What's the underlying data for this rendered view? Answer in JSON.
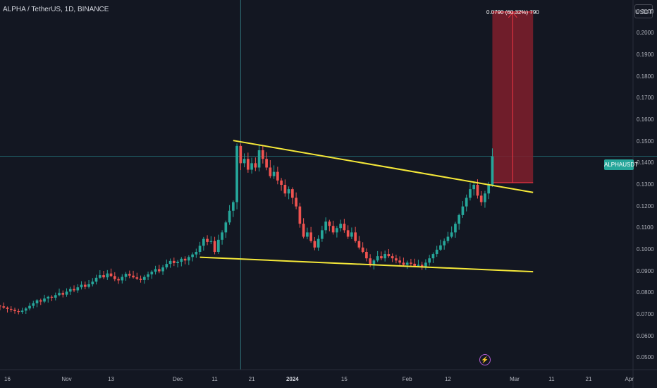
{
  "header": {
    "title": "ALPHA / TetherUS, 1D, BINANCE"
  },
  "price_scale": {
    "unit_label": "USDT"
  },
  "ticker_badge": "ALPHAUSDT",
  "measure_label": "0.0790 (60.32%) 790",
  "colors": {
    "background": "#131722",
    "up": "#26a69a",
    "down": "#ef5350",
    "trendline": "#f5e839",
    "measure_fill": "#801f2c",
    "measure_line": "#f23645"
  },
  "chart_data": {
    "type": "candlestick",
    "title": "ALPHA / TetherUS, 1D, BINANCE",
    "y_axis": {
      "ticks": [
        "0.2100",
        "0.2000",
        "0.1900",
        "0.1800",
        "0.1700",
        "0.1600",
        "0.1500",
        "0.1400",
        "0.1300",
        "0.1200",
        "0.1100",
        "0.1000",
        "0.0900",
        "0.0800",
        "0.0700",
        "0.0600",
        "0.0500"
      ],
      "ylim": [
        0.0445,
        0.2155
      ],
      "position": "right"
    },
    "x_axis": {
      "ticks": [
        "16",
        "Nov",
        "13",
        "Dec",
        "11",
        "21",
        "2024",
        "15",
        "Feb",
        "12",
        "Mar",
        "11",
        "21",
        "Apr"
      ],
      "bold_ticks": [
        "2024"
      ]
    },
    "x_date_range": [
      "2023-10-14",
      "2024-04-02"
    ],
    "current_price": 0.1432,
    "crosshair_date": "2023-12-18",
    "closes": [
      [
        "2023-10-14",
        0.0738
      ],
      [
        "2023-10-15",
        0.0732
      ],
      [
        "2023-10-16",
        0.0726
      ],
      [
        "2023-10-17",
        0.0722
      ],
      [
        "2023-10-18",
        0.0716
      ],
      [
        "2023-10-19",
        0.0712
      ],
      [
        "2023-10-20",
        0.0718
      ],
      [
        "2023-10-21",
        0.0728
      ],
      [
        "2023-10-22",
        0.074
      ],
      [
        "2023-10-23",
        0.0752
      ],
      [
        "2023-10-24",
        0.0766
      ],
      [
        "2023-10-25",
        0.076
      ],
      [
        "2023-10-26",
        0.0774
      ],
      [
        "2023-10-27",
        0.0782
      ],
      [
        "2023-10-28",
        0.0778
      ],
      [
        "2023-10-29",
        0.079
      ],
      [
        "2023-10-30",
        0.08
      ],
      [
        "2023-10-31",
        0.0792
      ],
      [
        "2023-11-01",
        0.0806
      ],
      [
        "2023-11-02",
        0.0818
      ],
      [
        "2023-11-03",
        0.0812
      ],
      [
        "2023-11-04",
        0.0826
      ],
      [
        "2023-11-05",
        0.0838
      ],
      [
        "2023-11-06",
        0.0828
      ],
      [
        "2023-11-07",
        0.084
      ],
      [
        "2023-11-08",
        0.0852
      ],
      [
        "2023-11-09",
        0.087
      ],
      [
        "2023-11-10",
        0.0882
      ],
      [
        "2023-11-11",
        0.0872
      ],
      [
        "2023-11-12",
        0.089
      ],
      [
        "2023-11-13",
        0.0878
      ],
      [
        "2023-11-14",
        0.0864
      ],
      [
        "2023-11-15",
        0.0858
      ],
      [
        "2023-11-16",
        0.0874
      ],
      [
        "2023-11-17",
        0.0888
      ],
      [
        "2023-11-18",
        0.088
      ],
      [
        "2023-11-19",
        0.0872
      ],
      [
        "2023-11-20",
        0.0866
      ],
      [
        "2023-11-21",
        0.086
      ],
      [
        "2023-11-22",
        0.0874
      ],
      [
        "2023-11-23",
        0.0886
      ],
      [
        "2023-11-24",
        0.0898
      ],
      [
        "2023-11-25",
        0.091
      ],
      [
        "2023-11-26",
        0.09
      ],
      [
        "2023-11-27",
        0.0918
      ],
      [
        "2023-11-28",
        0.0934
      ],
      [
        "2023-11-29",
        0.0948
      ],
      [
        "2023-11-30",
        0.0938
      ],
      [
        "2023-12-01",
        0.0944
      ],
      [
        "2023-12-02",
        0.0958
      ],
      [
        "2023-12-03",
        0.095
      ],
      [
        "2023-12-04",
        0.0966
      ],
      [
        "2023-12-05",
        0.0978
      ],
      [
        "2023-12-06",
        0.099
      ],
      [
        "2023-12-07",
        0.1018
      ],
      [
        "2023-12-08",
        0.105
      ],
      [
        "2023-12-09",
        0.1036
      ],
      [
        "2023-12-10",
        0.104
      ],
      [
        "2023-12-11",
        0.099
      ],
      [
        "2023-12-12",
        0.1046
      ],
      [
        "2023-12-13",
        0.108
      ],
      [
        "2023-12-14",
        0.1126
      ],
      [
        "2023-12-15",
        0.118
      ],
      [
        "2023-12-16",
        0.122
      ],
      [
        "2023-12-17",
        0.148
      ],
      [
        "2023-12-18",
        0.14
      ],
      [
        "2023-12-19",
        0.142
      ],
      [
        "2023-12-20",
        0.137
      ],
      [
        "2023-12-21",
        0.14
      ],
      [
        "2023-12-22",
        0.138
      ],
      [
        "2023-12-23",
        0.146
      ],
      [
        "2023-12-24",
        0.142
      ],
      [
        "2023-12-25",
        0.138
      ],
      [
        "2023-12-26",
        0.134
      ],
      [
        "2023-12-27",
        0.136
      ],
      [
        "2023-12-28",
        0.132
      ],
      [
        "2023-12-29",
        0.13
      ],
      [
        "2023-12-30",
        0.126
      ],
      [
        "2023-12-31",
        0.128
      ],
      [
        "2024-01-01",
        0.124
      ],
      [
        "2024-01-02",
        0.12
      ],
      [
        "2024-01-03",
        0.112
      ],
      [
        "2024-01-04",
        0.106
      ],
      [
        "2024-01-05",
        0.108
      ],
      [
        "2024-01-06",
        0.104
      ],
      [
        "2024-01-07",
        0.101
      ],
      [
        "2024-01-08",
        0.105
      ],
      [
        "2024-01-09",
        0.109
      ],
      [
        "2024-01-10",
        0.113
      ],
      [
        "2024-01-11",
        0.111
      ],
      [
        "2024-01-12",
        0.108
      ],
      [
        "2024-01-13",
        0.11
      ],
      [
        "2024-01-14",
        0.112
      ],
      [
        "2024-01-15",
        0.109
      ],
      [
        "2024-01-16",
        0.106
      ],
      [
        "2024-01-17",
        0.108
      ],
      [
        "2024-01-18",
        0.104
      ],
      [
        "2024-01-19",
        0.101
      ],
      [
        "2024-01-20",
        0.099
      ],
      [
        "2024-01-21",
        0.096
      ],
      [
        "2024-01-22",
        0.093
      ],
      [
        "2024-01-23",
        0.095
      ],
      [
        "2024-01-24",
        0.097
      ],
      [
        "2024-01-25",
        0.096
      ],
      [
        "2024-01-26",
        0.098
      ],
      [
        "2024-01-27",
        0.097
      ],
      [
        "2024-01-28",
        0.096
      ],
      [
        "2024-01-29",
        0.095
      ],
      [
        "2024-01-30",
        0.094
      ],
      [
        "2024-01-31",
        0.093
      ],
      [
        "2024-02-01",
        0.094
      ],
      [
        "2024-02-02",
        0.0935
      ],
      [
        "2024-02-03",
        0.0925
      ],
      [
        "2024-02-04",
        0.093
      ],
      [
        "2024-02-05",
        0.092
      ],
      [
        "2024-02-06",
        0.094
      ],
      [
        "2024-02-07",
        0.096
      ],
      [
        "2024-02-08",
        0.098
      ],
      [
        "2024-02-09",
        0.1
      ],
      [
        "2024-02-10",
        0.102
      ],
      [
        "2024-02-11",
        0.104
      ],
      [
        "2024-02-12",
        0.106
      ],
      [
        "2024-02-13",
        0.108
      ],
      [
        "2024-02-14",
        0.112
      ],
      [
        "2024-02-15",
        0.116
      ],
      [
        "2024-02-16",
        0.12
      ],
      [
        "2024-02-17",
        0.124
      ],
      [
        "2024-02-18",
        0.128
      ],
      [
        "2024-02-19",
        0.13
      ],
      [
        "2024-02-20",
        0.125
      ],
      [
        "2024-02-21",
        0.122
      ],
      [
        "2024-02-22",
        0.126
      ],
      [
        "2024-02-23",
        0.13
      ],
      [
        "2024-02-24",
        0.1432
      ]
    ],
    "trendlines": [
      {
        "from": [
          "2023-12-16",
          0.1505
        ],
        "to": [
          "2024-03-06",
          0.1265
        ]
      },
      {
        "from": [
          "2023-12-07",
          0.0965
        ],
        "to": [
          "2024-03-06",
          0.0898
        ]
      }
    ],
    "measure": {
      "from_date": "2024-02-24",
      "to_date": "2024-03-06",
      "from_price": 0.131,
      "to_price": 0.21,
      "change": "0.0790",
      "change_pct": "60.32%",
      "ticks": "790"
    }
  }
}
